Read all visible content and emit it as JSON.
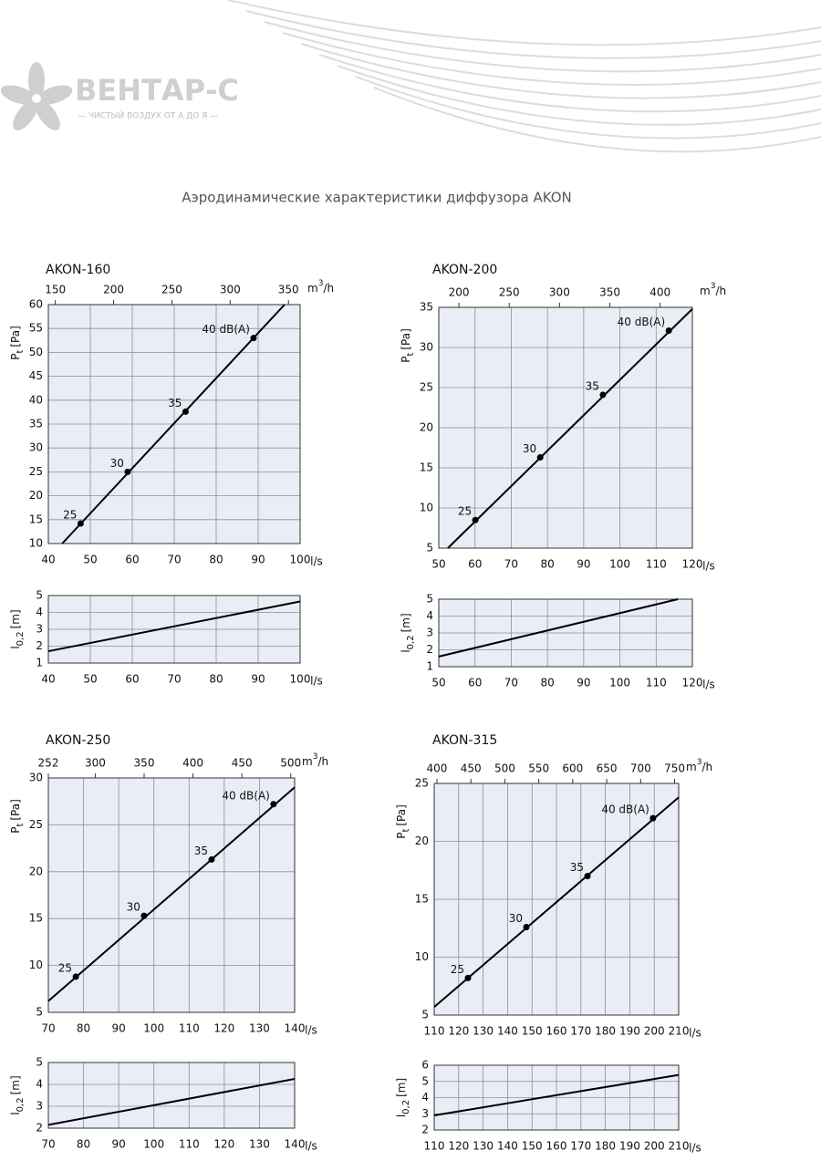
{
  "header": {
    "logo": "ВЕНТАР-С",
    "tagline": "— ЧИСТЫЙ ВОЗДУХ ОТ А ДО Я —",
    "title": "Аэродинамические характеристики диффузора AKON"
  },
  "chart_data": [
    {
      "type": "line",
      "title": "AKON-160",
      "xlabel": "l/s",
      "ylabel": {
        "symbol": "P",
        "subscript": "t",
        "unit": "[Pa]"
      },
      "x2label": {
        "base": "m",
        "sup": "3",
        "rest": "/h"
      },
      "xlim": [
        40,
        100
      ],
      "xticks": [
        40,
        50,
        60,
        70,
        80,
        90,
        100
      ],
      "x2lim": [
        144,
        360
      ],
      "x2ticks": [
        150,
        200,
        250,
        300,
        350
      ],
      "ylim": [
        10,
        60
      ],
      "yticks": [
        10,
        15,
        20,
        25,
        30,
        35,
        40,
        45,
        50,
        55,
        60
      ],
      "grid": true,
      "series": [
        {
          "color": "#000000",
          "x": [
            43.3,
            96.3
          ],
          "values": [
            10,
            60
          ]
        }
      ],
      "points": {
        "x": [
          47.7,
          58.9,
          72.7,
          88.9
        ],
        "values": [
          14.2,
          25,
          37.6,
          53
        ],
        "labels": [
          "25",
          "30",
          "35",
          "40 dB(A)"
        ]
      }
    },
    {
      "type": "line",
      "xlabel": "l/s",
      "ylabel": {
        "symbol": "l",
        "subscript": "0,2",
        "unit": "[m]"
      },
      "xlim": [
        40,
        100
      ],
      "xticks": [
        40,
        50,
        60,
        70,
        80,
        90,
        100
      ],
      "ylim": [
        1,
        5
      ],
      "yticks": [
        1,
        2,
        3,
        4,
        5
      ],
      "grid": true,
      "series": [
        {
          "color": "#000000",
          "x": [
            40,
            100
          ],
          "values": [
            1.7,
            4.65
          ]
        }
      ]
    },
    {
      "type": "line",
      "title": "AKON-200",
      "xlabel": "l/s",
      "ylabel": {
        "symbol": "P",
        "subscript": "t",
        "unit": "[Pa]"
      },
      "x2label": {
        "base": "m",
        "sup": "3",
        "rest": "/h"
      },
      "xlim": [
        50,
        120
      ],
      "xticks": [
        50,
        60,
        70,
        80,
        90,
        100,
        110,
        120
      ],
      "x2lim": [
        180,
        432
      ],
      "x2ticks": [
        200,
        250,
        300,
        350,
        400
      ],
      "ylim": [
        5,
        35
      ],
      "yticks": [
        5,
        10,
        15,
        20,
        25,
        30,
        35
      ],
      "grid": true,
      "series": [
        {
          "color": "#000000",
          "x": [
            52.5,
            120
          ],
          "values": [
            5,
            34.8
          ]
        }
      ],
      "points": {
        "x": [
          60.1,
          78,
          95.3,
          113.5
        ],
        "values": [
          8.5,
          16.3,
          24.1,
          32.1
        ],
        "labels": [
          "25",
          "30",
          "35",
          "40 dB(A)"
        ]
      }
    },
    {
      "type": "line",
      "xlabel": "l/s",
      "ylabel": {
        "symbol": "l",
        "subscript": "0,2",
        "unit": "[m]"
      },
      "xlim": [
        50,
        120
      ],
      "xticks": [
        50,
        60,
        70,
        80,
        90,
        100,
        110,
        120
      ],
      "ylim": [
        1,
        5
      ],
      "yticks": [
        1,
        2,
        3,
        4,
        5
      ],
      "grid": true,
      "series": [
        {
          "color": "#000000",
          "x": [
            50,
            116
          ],
          "values": [
            1.6,
            5
          ]
        }
      ]
    },
    {
      "type": "line",
      "title": "AKON-250",
      "xlabel": "l/s",
      "ylabel": {
        "symbol": "P",
        "subscript": "t",
        "unit": "[Pa]"
      },
      "x2label": {
        "base": "m",
        "sup": "3",
        "rest": "/h"
      },
      "xlim": [
        70,
        140
      ],
      "xticks": [
        70,
        80,
        90,
        100,
        110,
        120,
        130,
        140
      ],
      "x2lim": [
        252,
        504
      ],
      "x2ticks": [
        252,
        300,
        350,
        400,
        450,
        500
      ],
      "ylim": [
        5,
        30
      ],
      "yticks": [
        5,
        10,
        15,
        20,
        25,
        30
      ],
      "grid": true,
      "series": [
        {
          "color": "#000000",
          "x": [
            70,
            140
          ],
          "values": [
            6.2,
            29
          ]
        }
      ],
      "points": {
        "x": [
          77.8,
          97.2,
          116.4,
          134
        ],
        "values": [
          8.8,
          15.3,
          21.3,
          27.2
        ],
        "labels": [
          "25",
          "30",
          "35",
          "40 dB(A)"
        ]
      }
    },
    {
      "type": "line",
      "xlabel": "l/s",
      "ylabel": {
        "symbol": "l",
        "subscript": "0,2",
        "unit": "[m]"
      },
      "xlim": [
        70,
        140
      ],
      "xticks": [
        70,
        80,
        90,
        100,
        110,
        120,
        130,
        140
      ],
      "ylim": [
        2,
        5
      ],
      "yticks": [
        2,
        3,
        4,
        5
      ],
      "grid": true,
      "series": [
        {
          "color": "#000000",
          "x": [
            70,
            140
          ],
          "values": [
            2.15,
            4.25
          ]
        }
      ]
    },
    {
      "type": "line",
      "title": "AKON-315",
      "xlabel": "l/s",
      "ylabel": {
        "symbol": "P",
        "subscript": "t",
        "unit": "[Pa]"
      },
      "x2label": {
        "base": "m",
        "sup": "3",
        "rest": "/h"
      },
      "xlim": [
        110,
        210
      ],
      "xticks": [
        110,
        120,
        130,
        140,
        150,
        160,
        170,
        180,
        190,
        200,
        210
      ],
      "x2lim": [
        396,
        756
      ],
      "x2ticks": [
        400,
        450,
        500,
        550,
        600,
        650,
        700,
        750
      ],
      "ylim": [
        5,
        25
      ],
      "yticks": [
        5,
        10,
        15,
        20,
        25
      ],
      "grid": true,
      "series": [
        {
          "color": "#000000",
          "x": [
            110,
            210
          ],
          "values": [
            5.7,
            23.8
          ]
        }
      ],
      "points": {
        "x": [
          123.8,
          147.7,
          172.7,
          199.5
        ],
        "values": [
          8.2,
          12.6,
          17,
          22
        ],
        "labels": [
          "25",
          "30",
          "35",
          "40 dB(A)"
        ]
      }
    },
    {
      "type": "line",
      "xlabel": "l/s",
      "ylabel": {
        "symbol": "l",
        "subscript": "0,2",
        "unit": "[m]"
      },
      "xlim": [
        110,
        210
      ],
      "xticks": [
        110,
        120,
        130,
        140,
        150,
        160,
        170,
        180,
        190,
        200,
        210
      ],
      "ylim": [
        2,
        6
      ],
      "yticks": [
        2,
        3,
        4,
        5,
        6
      ],
      "grid": true,
      "series": [
        {
          "color": "#000000",
          "x": [
            110,
            210
          ],
          "values": [
            2.9,
            5.4
          ]
        }
      ]
    }
  ]
}
